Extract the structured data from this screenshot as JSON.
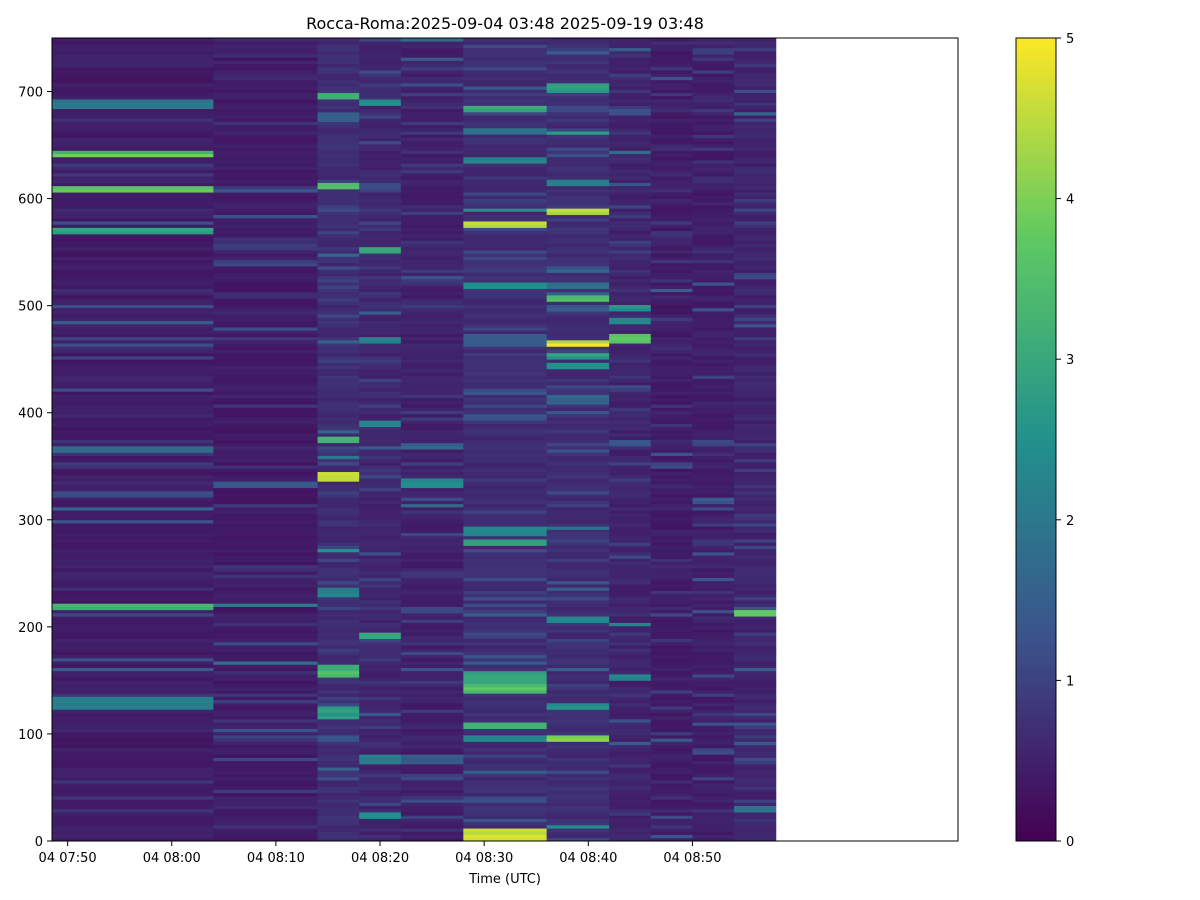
{
  "chart_data": {
    "type": "heatmap",
    "title": "Rocca-Roma:2025-09-04 03:48 2025-09-19 03:48",
    "xlabel": "Time (UTC)",
    "ylabel": "",
    "x_range_minutes_after_0750": [
      -1.5,
      85.5
    ],
    "ylim": [
      0,
      750
    ],
    "x_ticks": [
      "04 07:50",
      "04 08:00",
      "04 08:10",
      "04 08:20",
      "04 08:30",
      "04 08:40",
      "04 08:50"
    ],
    "y_ticks": [
      0,
      100,
      200,
      300,
      400,
      500,
      600,
      700
    ],
    "colorbar": {
      "range": [
        0,
        5
      ],
      "ticks": [
        0,
        1,
        2,
        3,
        4,
        5
      ],
      "colormap": "viridis",
      "stops": [
        "#440154",
        "#3b528b",
        "#21918c",
        "#5ec962",
        "#fde725"
      ]
    },
    "column_blocks": [
      {
        "start": "04 07:48",
        "end": "04 08:04",
        "base": 0.3,
        "bands": [
          [
            129,
            14,
            2.2
          ],
          [
            219,
            8,
            3.4
          ],
          [
            161,
            3,
            1.5
          ],
          [
            170,
            3,
            1.2
          ],
          [
            311,
            3,
            1.6
          ],
          [
            366,
            3,
            1.8
          ],
          [
            451,
            3,
            1.1
          ],
          [
            484,
            3,
            1.7
          ],
          [
            570,
            4,
            3.0
          ],
          [
            609,
            7,
            3.9
          ],
          [
            642,
            6,
            3.7
          ],
          [
            688,
            10,
            2.2
          ],
          [
            640,
            3,
            4.0
          ],
          [
            607,
            3,
            4.2
          ]
        ]
      },
      {
        "start": "04 08:04",
        "end": "04 08:14",
        "base": 0.28,
        "bands": [
          [
            166,
            4,
            2.0
          ],
          [
            221,
            4,
            2.2
          ],
          [
            98,
            3,
            1.1
          ],
          [
            333,
            3,
            1.6
          ],
          [
            423,
            2,
            1.1
          ],
          [
            540,
            3,
            1.1
          ],
          [
            610,
            2,
            0.9
          ]
        ]
      },
      {
        "start": "04 08:14",
        "end": "04 08:18",
        "base": 0.55,
        "bands": [
          [
            341,
            9,
            5.0
          ],
          [
            374,
            6,
            3.3
          ],
          [
            358,
            4,
            2.3
          ],
          [
            272,
            4,
            2.6
          ],
          [
            233,
            7,
            2.3
          ],
          [
            159,
            9,
            3.6
          ],
          [
            120,
            10,
            2.9
          ],
          [
            613,
            5,
            3.6
          ],
          [
            696,
            8,
            3.2
          ],
          [
            676,
            7,
            1.7
          ],
          [
            466,
            3,
            1.6
          ],
          [
            547,
            3,
            1.7
          ],
          [
            96,
            3,
            1.4
          ],
          [
            58,
            3,
            1.3
          ]
        ]
      },
      {
        "start": "04 08:18",
        "end": "04 08:22",
        "base": 0.45,
        "bands": [
          [
            553,
            6,
            3.4
          ],
          [
            191,
            5,
            3.2
          ],
          [
            389,
            6,
            2.4
          ],
          [
            468,
            4,
            2.4
          ],
          [
            493,
            4,
            1.7
          ],
          [
            690,
            3,
            2.6
          ],
          [
            77,
            8,
            2.2
          ],
          [
            24,
            4,
            2.6
          ],
          [
            611,
            5,
            1.2
          ],
          [
            653,
            4,
            1.3
          ]
        ]
      },
      {
        "start": "04 08:22",
        "end": "04 08:28",
        "base": 0.35,
        "bands": [
          [
            334,
            10,
            2.6
          ],
          [
            368,
            3,
            2.0
          ],
          [
            313,
            3,
            1.8
          ],
          [
            77,
            8,
            1.5
          ],
          [
            175,
            3,
            1.3
          ],
          [
            216,
            3,
            1.1
          ],
          [
            300,
            2,
            1.0
          ],
          [
            748,
            3,
            2.0
          ]
        ]
      },
      {
        "start": "04 08:28",
        "end": "04 08:36",
        "base": 0.55,
        "bands": [
          [
            5,
            11,
            5.0
          ],
          [
            142,
            8,
            3.8
          ],
          [
            152,
            12,
            3.0
          ],
          [
            108,
            7,
            3.5
          ],
          [
            96,
            6,
            2.5
          ],
          [
            278,
            5,
            3.0
          ],
          [
            290,
            9,
            2.5
          ],
          [
            575,
            6,
            4.8
          ],
          [
            590,
            4,
            2.5
          ],
          [
            519,
            5,
            2.7
          ],
          [
            684,
            8,
            3.3
          ],
          [
            636,
            5,
            2.5
          ],
          [
            664,
            5,
            2.0
          ],
          [
            468,
            12,
            1.6
          ],
          [
            395,
            5,
            1.4
          ],
          [
            345,
            2,
            1.3
          ],
          [
            65,
            3,
            1.6
          ],
          [
            39,
            3,
            1.3
          ]
        ]
      },
      {
        "start": "04 08:36",
        "end": "04 08:42",
        "base": 0.55,
        "bands": [
          [
            588,
            8,
            5.0
          ],
          [
            464,
            5,
            5.0
          ],
          [
            96,
            4,
            4.6
          ],
          [
            506,
            5,
            3.8
          ],
          [
            454,
            6,
            3.0
          ],
          [
            444,
            5,
            2.6
          ],
          [
            703,
            7,
            3.0
          ],
          [
            661,
            4,
            3.1
          ],
          [
            616,
            5,
            2.2
          ],
          [
            126,
            7,
            2.7
          ],
          [
            207,
            5,
            2.6
          ],
          [
            292,
            3,
            2.2
          ],
          [
            412,
            8,
            1.7
          ],
          [
            520,
            5,
            2.1
          ],
          [
            533,
            4,
            1.8
          ],
          [
            13,
            3,
            2.5
          ],
          [
            241,
            3,
            1.4
          ],
          [
            640,
            3,
            1.4
          ],
          [
            684,
            3,
            1.2
          ]
        ]
      },
      {
        "start": "04 08:42",
        "end": "04 08:46",
        "base": 0.42,
        "bands": [
          [
            469,
            9,
            3.8
          ],
          [
            497,
            5,
            2.8
          ],
          [
            486,
            5,
            2.5
          ],
          [
            153,
            6,
            2.5
          ],
          [
            202,
            4,
            2.6
          ],
          [
            644,
            3,
            2.0
          ],
          [
            613,
            3,
            1.5
          ],
          [
            371,
            3,
            1.4
          ],
          [
            265,
            4,
            1.2
          ],
          [
            112,
            4,
            1.3
          ],
          [
            681,
            4,
            1.3
          ]
        ]
      },
      {
        "start": "04 08:46",
        "end": "04 08:50",
        "base": 0.3,
        "bands": [
          [
            515,
            4,
            1.5
          ],
          [
            350,
            5,
            1.2
          ],
          [
            5,
            4,
            1.5
          ],
          [
            23,
            3,
            1.2
          ],
          [
            140,
            4,
            1.0
          ]
        ]
      },
      {
        "start": "04 08:50",
        "end": "04 08:54",
        "base": 0.32,
        "bands": [
          [
            320,
            4,
            1.5
          ],
          [
            373,
            5,
            1.2
          ],
          [
            268,
            4,
            1.3
          ],
          [
            84,
            3,
            1.2
          ],
          [
            59,
            3,
            1.1
          ],
          [
            738,
            3,
            1.0
          ]
        ]
      },
      {
        "start": "04 08:54",
        "end": "04 08:58",
        "base": 0.42,
        "bands": [
          [
            214,
            6,
            4.2
          ],
          [
            30,
            8,
            2.2
          ],
          [
            91,
            4,
            1.6
          ],
          [
            161,
            3,
            1.7
          ],
          [
            295,
            4,
            1.2
          ],
          [
            482,
            3,
            1.4
          ],
          [
            528,
            3,
            1.2
          ],
          [
            701,
            4,
            1.3
          ],
          [
            680,
            2,
            1.8
          ]
        ]
      }
    ]
  }
}
